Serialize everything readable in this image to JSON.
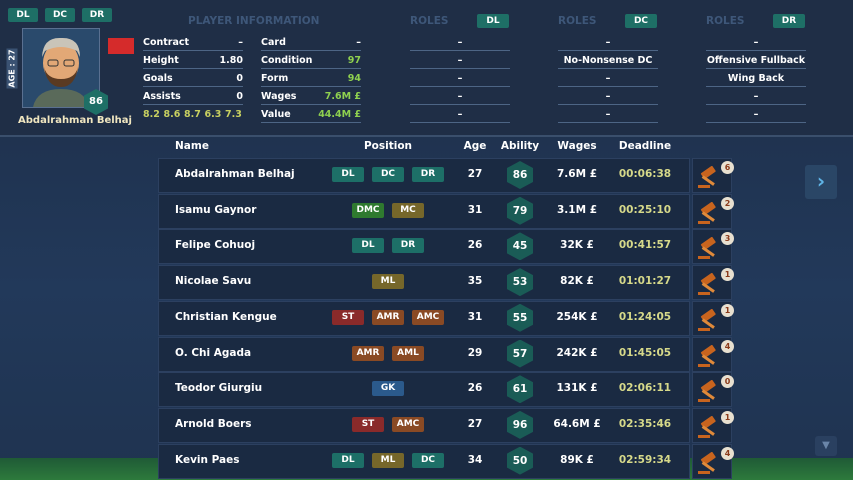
{
  "tabs": [
    "DL",
    "DC",
    "DR"
  ],
  "section_title": "PLAYER INFORMATION",
  "player": {
    "age_label": "AGE : 27",
    "name": "Abdalrahman Belhaj",
    "rating": 86,
    "stats_left": [
      {
        "label": "Contract",
        "value": "–"
      },
      {
        "label": "Height",
        "value": "1.80"
      },
      {
        "label": "Goals",
        "value": "0"
      },
      {
        "label": "Assists",
        "value": "0"
      }
    ],
    "stats_right": [
      {
        "label": "Card",
        "value": "–",
        "color": "#ffffff"
      },
      {
        "label": "Condition",
        "value": "97",
        "color": "#8fd14f"
      },
      {
        "label": "Form",
        "value": "94",
        "color": "#8fd14f"
      },
      {
        "label": "Wages",
        "value": "7.6M £",
        "color": "#8fd14f"
      },
      {
        "label": "Value",
        "value": "44.4M £",
        "color": "#8fd14f"
      }
    ],
    "attributes": [
      "8.2",
      "8.6",
      "8.7",
      "6.3",
      "7.3"
    ]
  },
  "roles": [
    {
      "label": "ROLES",
      "position": "DL",
      "rows": [
        "–",
        "–",
        "–",
        "–",
        "–"
      ]
    },
    {
      "label": "ROLES",
      "position": "DC",
      "rows": [
        "–",
        "No-Nonsense DC",
        "–",
        "–",
        "–"
      ]
    },
    {
      "label": "ROLES",
      "position": "DR",
      "rows": [
        "–",
        "Offensive Fullback",
        "Wing Back",
        "–",
        "–"
      ]
    }
  ],
  "table": {
    "columns": [
      "Name",
      "Position",
      "Age",
      "Ability",
      "Wages",
      "Deadline"
    ],
    "rows": [
      {
        "name": "Abdalrahman Belhaj",
        "positions": [
          {
            "label": "DL",
            "color": "#1d6f67"
          },
          {
            "label": "DC",
            "color": "#1d6f67"
          },
          {
            "label": "DR",
            "color": "#1d6f67"
          }
        ],
        "age": "27",
        "ability": "86",
        "wages": "7.6M £",
        "deadline": "00:06:38",
        "bids": "6"
      },
      {
        "name": "Isamu Gaynor",
        "positions": [
          {
            "label": "DMC",
            "color": "#2f7a2f"
          },
          {
            "label": "MC",
            "color": "#76672a"
          }
        ],
        "age": "31",
        "ability": "79",
        "wages": "3.1M £",
        "deadline": "00:25:10",
        "bids": "2"
      },
      {
        "name": "Felipe Cohuoj",
        "positions": [
          {
            "label": "DL",
            "color": "#1d6f67"
          },
          {
            "label": "DR",
            "color": "#1d6f67"
          }
        ],
        "age": "26",
        "ability": "45",
        "wages": "32K £",
        "deadline": "00:41:57",
        "bids": "3"
      },
      {
        "name": "Nicolae Savu",
        "positions": [
          {
            "label": "ML",
            "color": "#76672a"
          }
        ],
        "age": "35",
        "ability": "53",
        "wages": "82K £",
        "deadline": "01:01:27",
        "bids": "1"
      },
      {
        "name": "Christian Kengue",
        "positions": [
          {
            "label": "ST",
            "color": "#8a2a2a"
          },
          {
            "label": "AMR",
            "color": "#8a4a24"
          },
          {
            "label": "AMC",
            "color": "#8a4a24"
          }
        ],
        "age": "31",
        "ability": "55",
        "wages": "254K £",
        "deadline": "01:24:05",
        "bids": "1"
      },
      {
        "name": "O. Chi Agada",
        "positions": [
          {
            "label": "AMR",
            "color": "#8a4a24"
          },
          {
            "label": "AML",
            "color": "#8a4a24"
          }
        ],
        "age": "29",
        "ability": "57",
        "wages": "242K £",
        "deadline": "01:45:05",
        "bids": "4"
      },
      {
        "name": "Teodor Giurgiu",
        "positions": [
          {
            "label": "GK",
            "color": "#2b5a8c"
          }
        ],
        "age": "26",
        "ability": "61",
        "wages": "131K £",
        "deadline": "02:06:11",
        "bids": "0"
      },
      {
        "name": "Arnold Boers",
        "positions": [
          {
            "label": "ST",
            "color": "#8a2a2a"
          },
          {
            "label": "AMC",
            "color": "#8a4a24"
          }
        ],
        "age": "27",
        "ability": "96",
        "wages": "64.6M £",
        "deadline": "02:35:46",
        "bids": "1"
      },
      {
        "name": "Kevin Paes",
        "positions": [
          {
            "label": "DL",
            "color": "#1d6f67"
          },
          {
            "label": "ML",
            "color": "#76672a"
          },
          {
            "label": "DC",
            "color": "#1d6f67"
          }
        ],
        "age": "34",
        "ability": "50",
        "wages": "89K £",
        "deadline": "02:59:34",
        "bids": "4"
      }
    ]
  }
}
